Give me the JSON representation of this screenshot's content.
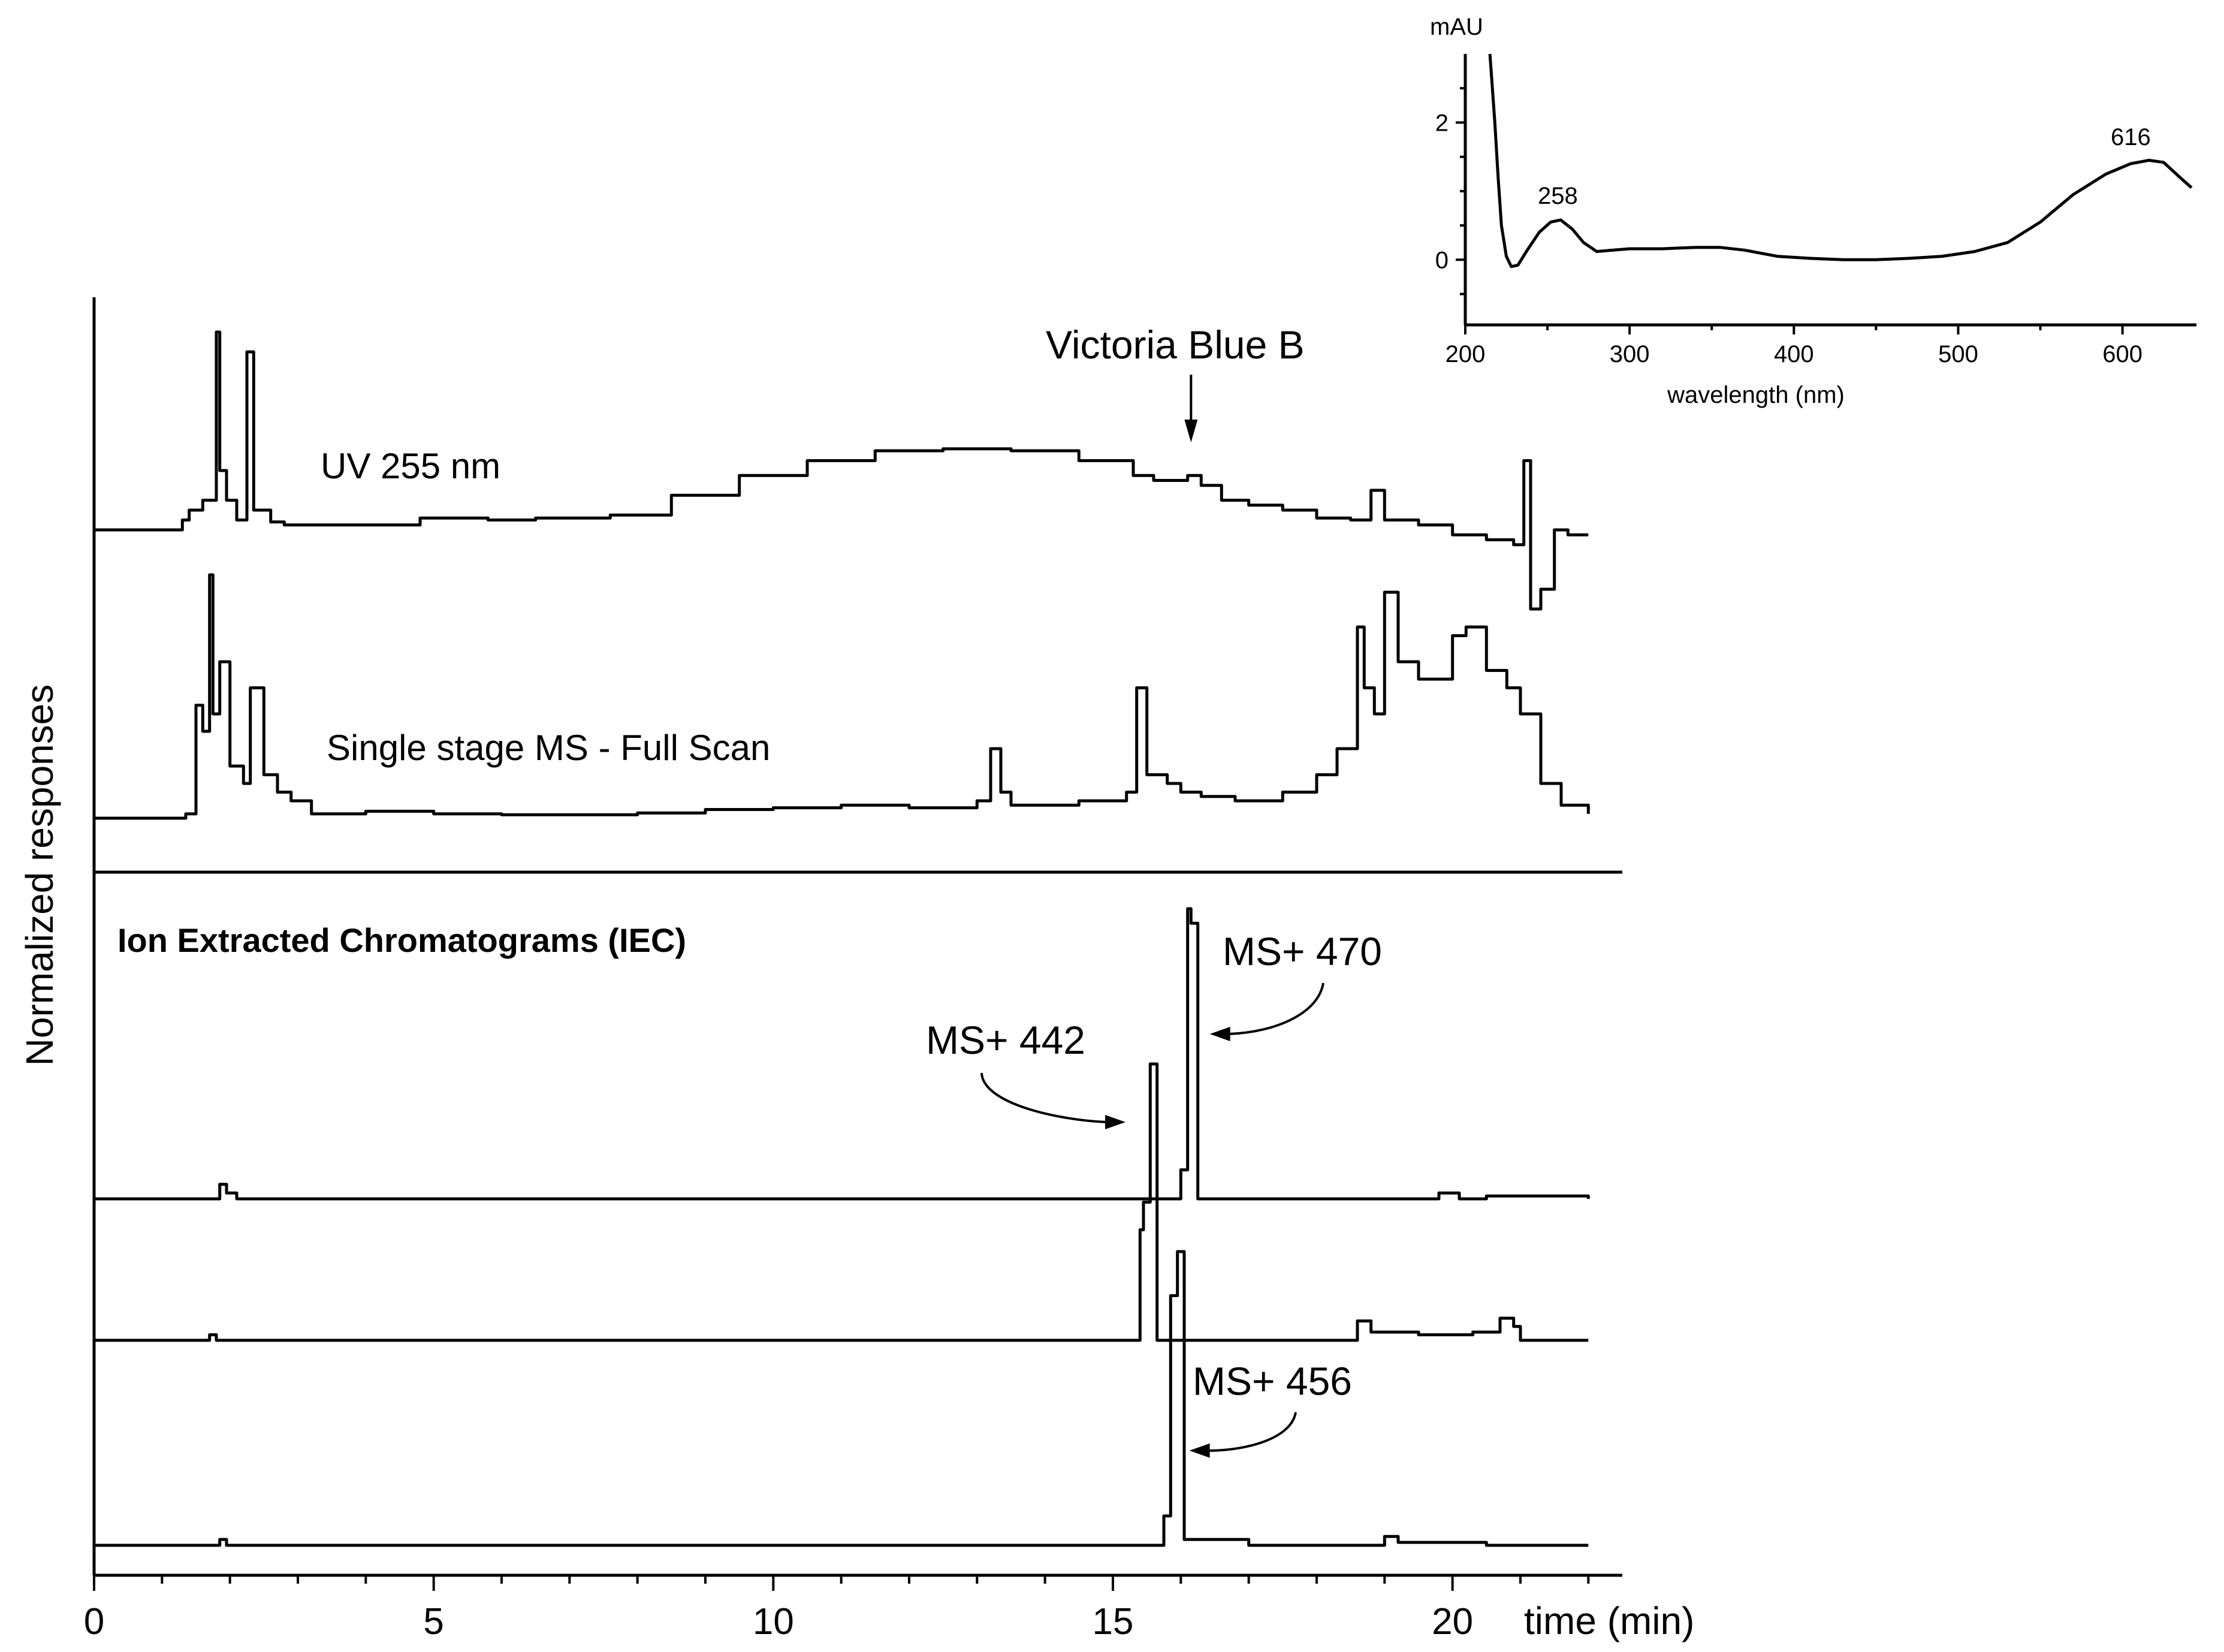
{
  "chart_data": [
    {
      "type": "line",
      "id": "main",
      "xlabel": "time (min)",
      "ylabel": "Normalized responses",
      "xlim": [
        0,
        22.5
      ],
      "x_ticks": [
        0,
        5,
        10,
        15,
        20
      ],
      "x_tick_labels": [
        "0",
        "5",
        "10",
        "15",
        "20"
      ],
      "panels": [
        {
          "id": "total",
          "series": [
            {
              "name": "UV 255 nm",
              "x": [
                0.0,
                1.3,
                1.4,
                1.6,
                1.8,
                1.85,
                1.95,
                2.1,
                2.25,
                2.35,
                2.6,
                2.8,
                3.5,
                4.8,
                5.8,
                6.5,
                7.6,
                8.5,
                9.5,
                10.5,
                11.5,
                12.5,
                13.5,
                14.5,
                15.3,
                15.6,
                16.0,
                16.1,
                16.3,
                16.6,
                17.0,
                17.5,
                18.0,
                18.5,
                18.8,
                19.0,
                19.5,
                20.0,
                20.5,
                20.9,
                21.05,
                21.15,
                21.3,
                21.5,
                21.7,
                22.0
              ],
              "y": [
                0.0,
                0.1,
                0.2,
                0.3,
                2.0,
                0.6,
                0.3,
                0.1,
                1.8,
                0.2,
                0.08,
                0.05,
                0.05,
                0.12,
                0.1,
                0.12,
                0.15,
                0.35,
                0.55,
                0.7,
                0.8,
                0.82,
                0.8,
                0.7,
                0.55,
                0.5,
                0.5,
                0.55,
                0.45,
                0.3,
                0.25,
                0.2,
                0.12,
                0.1,
                0.4,
                0.1,
                0.05,
                -0.05,
                -0.1,
                -0.15,
                0.7,
                -0.8,
                -0.6,
                0.0,
                -0.05,
                -0.05
              ]
            },
            {
              "name": "Single stage MS - Full Scan",
              "x": [
                0.0,
                1.35,
                1.5,
                1.6,
                1.7,
                1.75,
                1.85,
                2.0,
                2.2,
                2.3,
                2.5,
                2.7,
                2.9,
                3.2,
                4.0,
                5.0,
                6.0,
                7.0,
                8.0,
                9.0,
                10.0,
                11.0,
                12.0,
                13.0,
                13.2,
                13.35,
                13.5,
                14.5,
                15.2,
                15.35,
                15.5,
                15.8,
                16.0,
                16.3,
                16.8,
                17.5,
                18.0,
                18.3,
                18.6,
                18.7,
                18.85,
                19.0,
                19.2,
                19.5,
                19.8,
                20.0,
                20.2,
                20.5,
                20.8,
                21.0,
                21.3,
                21.6,
                22.0
              ],
              "y": [
                0.0,
                0.05,
                1.3,
                1.0,
                2.8,
                1.2,
                1.8,
                0.6,
                0.4,
                1.5,
                0.5,
                0.3,
                0.2,
                0.05,
                0.08,
                0.05,
                0.04,
                0.04,
                0.06,
                0.1,
                0.12,
                0.15,
                0.12,
                0.2,
                0.8,
                0.3,
                0.15,
                0.2,
                0.3,
                1.5,
                0.5,
                0.4,
                0.3,
                0.25,
                0.2,
                0.3,
                0.5,
                0.8,
                2.2,
                1.5,
                1.2,
                2.6,
                1.8,
                1.6,
                1.6,
                2.1,
                2.2,
                1.7,
                1.5,
                1.2,
                0.4,
                0.15,
                0.05
              ]
            }
          ]
        },
        {
          "id": "iec",
          "title": "Ion Extracted Chromatograms (IEC)",
          "series": [
            {
              "name": "MS+ 470",
              "x": [
                0.0,
                1.75,
                1.85,
                1.95,
                2.1,
                15.9,
                16.0,
                16.1,
                16.15,
                16.25,
                17.0,
                19.5,
                19.8,
                20.1,
                20.5,
                22.0
              ],
              "y": [
                0.0,
                0.0,
                0.05,
                0.02,
                0.0,
                0.0,
                0.1,
                1.0,
                0.95,
                0.0,
                0.0,
                0.0,
                0.02,
                0.0,
                0.01,
                0.0
              ]
            },
            {
              "name": "MS+ 442",
              "x": [
                0.0,
                1.6,
                1.7,
                1.8,
                15.3,
                15.4,
                15.45,
                15.55,
                15.65,
                16.0,
                18.5,
                18.6,
                18.8,
                19.5,
                20.3,
                20.7,
                20.9,
                21.0,
                22.0
              ],
              "y": [
                0.0,
                0.0,
                0.02,
                0.0,
                0.0,
                0.4,
                0.5,
                1.0,
                0.0,
                0.0,
                0.0,
                0.07,
                0.03,
                0.02,
                0.03,
                0.08,
                0.05,
                0.0,
                0.0
              ]
            },
            {
              "name": "MS+ 456",
              "x": [
                0.0,
                1.75,
                1.85,
                1.95,
                15.7,
                15.75,
                15.85,
                15.95,
                16.05,
                17.0,
                18.9,
                19.0,
                19.2,
                20.5,
                22.0
              ],
              "y": [
                0.0,
                0.0,
                0.02,
                0.0,
                0.0,
                0.1,
                0.85,
                1.0,
                0.02,
                0.0,
                0.0,
                0.03,
                0.01,
                0.0,
                0.0
              ]
            }
          ]
        }
      ],
      "annotations": [
        {
          "text": "UV 255 nm",
          "target": "UV 255 nm"
        },
        {
          "text": "Single stage MS - Full Scan",
          "target": "Single stage MS - Full Scan"
        },
        {
          "text": "Victoria Blue B",
          "arrow_to_x": 16.15
        },
        {
          "text": "MS+ 470",
          "arrow_to_x": 16.25
        },
        {
          "text": "MS+ 442",
          "arrow_to_x": 15.45
        },
        {
          "text": "MS+ 456",
          "arrow_to_x": 15.95
        }
      ]
    },
    {
      "type": "line",
      "id": "inset",
      "xlabel": "wavelength (nm)",
      "ylabel": "mAU",
      "xlim": [
        200,
        645
      ],
      "ylim": [
        -0.95,
        3.0
      ],
      "x_ticks": [
        200,
        300,
        400,
        500,
        600
      ],
      "x_tick_labels": [
        "200",
        "300",
        "400",
        "500",
        "600"
      ],
      "y_ticks": [
        0,
        2
      ],
      "y_tick_labels": [
        "0",
        "2"
      ],
      "series": [
        {
          "x": [
            215,
            218,
            220,
            222,
            225,
            228,
            232,
            238,
            245,
            252,
            258,
            265,
            272,
            280,
            290,
            300,
            320,
            340,
            355,
            370,
            390,
            410,
            430,
            450,
            470,
            490,
            510,
            530,
            550,
            570,
            590,
            605,
            616,
            625,
            635,
            642
          ],
          "y": [
            3.0,
            2.0,
            1.2,
            0.5,
            0.05,
            -0.1,
            -0.08,
            0.15,
            0.4,
            0.55,
            0.58,
            0.45,
            0.25,
            0.12,
            0.14,
            0.16,
            0.16,
            0.18,
            0.18,
            0.14,
            0.05,
            0.02,
            0.0,
            0.0,
            0.02,
            0.05,
            0.12,
            0.25,
            0.55,
            0.95,
            1.25,
            1.4,
            1.45,
            1.42,
            1.2,
            1.05
          ]
        }
      ],
      "annotations": [
        {
          "text": "258",
          "x": 258,
          "y": 0.58
        },
        {
          "text": "616",
          "x": 616,
          "y": 1.45
        }
      ]
    }
  ]
}
